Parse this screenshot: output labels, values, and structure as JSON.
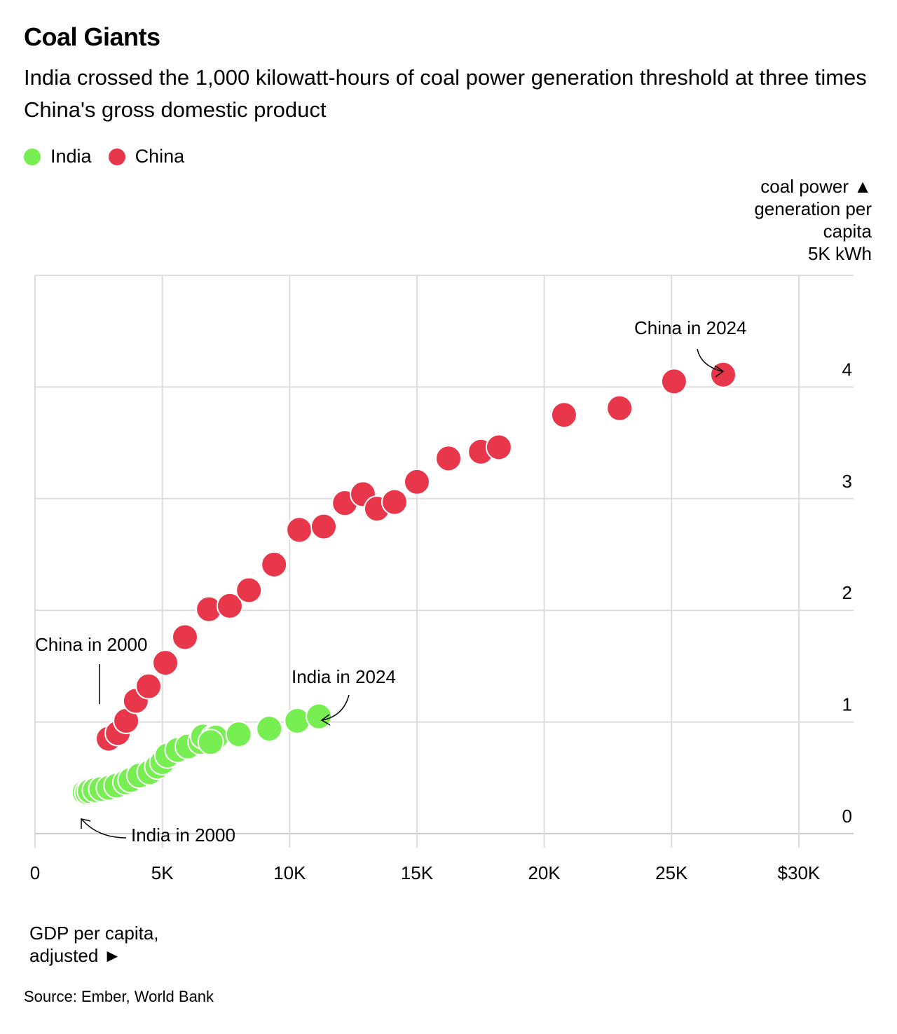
{
  "chart_data": {
    "type": "scatter",
    "title": "Coal Giants",
    "subtitle": "India crossed the 1,000 kilowatt-hours of coal power generation threshold at three times China's gross domestic product",
    "xlabel": "GDP per capita, adjusted ►",
    "ylabel_lines": [
      "coal power ▲",
      "generation per",
      "capita",
      "5K kWh"
    ],
    "xlim": [
      0,
      32000
    ],
    "ylim": [
      0,
      5
    ],
    "x_ticks": [
      0,
      5000,
      10000,
      15000,
      20000,
      25000,
      30000
    ],
    "x_tick_labels": [
      "0",
      "5K",
      "10K",
      "15K",
      "20K",
      "25K",
      "$30K"
    ],
    "y_ticks": [
      0,
      1,
      2,
      3,
      4
    ],
    "y_tick_labels": [
      "0",
      "1",
      "2",
      "3",
      "4"
    ],
    "grid": true,
    "legend_position": "top-left",
    "series": [
      {
        "name": "India",
        "color": "#77ef52",
        "points": [
          [
            1950,
            0.37
          ],
          [
            2050,
            0.37
          ],
          [
            2150,
            0.38
          ],
          [
            2350,
            0.39
          ],
          [
            2600,
            0.4
          ],
          [
            2900,
            0.41
          ],
          [
            3200,
            0.43
          ],
          [
            3550,
            0.46
          ],
          [
            3750,
            0.48
          ],
          [
            4100,
            0.52
          ],
          [
            4500,
            0.55
          ],
          [
            4800,
            0.6
          ],
          [
            5000,
            0.64
          ],
          [
            5200,
            0.7
          ],
          [
            5600,
            0.75
          ],
          [
            6000,
            0.78
          ],
          [
            6500,
            0.82
          ],
          [
            6600,
            0.87
          ],
          [
            7000,
            0.86
          ],
          [
            7100,
            0.86
          ],
          [
            6900,
            0.82
          ],
          [
            8000,
            0.89
          ],
          [
            9200,
            0.94
          ],
          [
            10300,
            1.01
          ],
          [
            11150,
            1.05
          ]
        ]
      },
      {
        "name": "China",
        "color": "#e8364a",
        "points": [
          [
            2890,
            0.85
          ],
          [
            3250,
            0.9
          ],
          [
            3580,
            1.01
          ],
          [
            3960,
            1.19
          ],
          [
            4460,
            1.32
          ],
          [
            5120,
            1.53
          ],
          [
            5890,
            1.76
          ],
          [
            6830,
            2.01
          ],
          [
            7650,
            2.04
          ],
          [
            8400,
            2.18
          ],
          [
            9390,
            2.41
          ],
          [
            10380,
            2.72
          ],
          [
            11340,
            2.75
          ],
          [
            12170,
            2.96
          ],
          [
            12880,
            3.04
          ],
          [
            13430,
            2.91
          ],
          [
            14120,
            2.97
          ],
          [
            15000,
            3.15
          ],
          [
            16240,
            3.36
          ],
          [
            17510,
            3.42
          ],
          [
            18220,
            3.46
          ],
          [
            20780,
            3.75
          ],
          [
            22960,
            3.81
          ],
          [
            25100,
            4.05
          ],
          [
            27030,
            4.11
          ]
        ]
      }
    ],
    "annotations": [
      {
        "text": "China in 2000"
      },
      {
        "text": "China in 2024"
      },
      {
        "text": "India in 2000"
      },
      {
        "text": "India in 2024"
      }
    ]
  },
  "source": "Source: Ember, World Bank"
}
